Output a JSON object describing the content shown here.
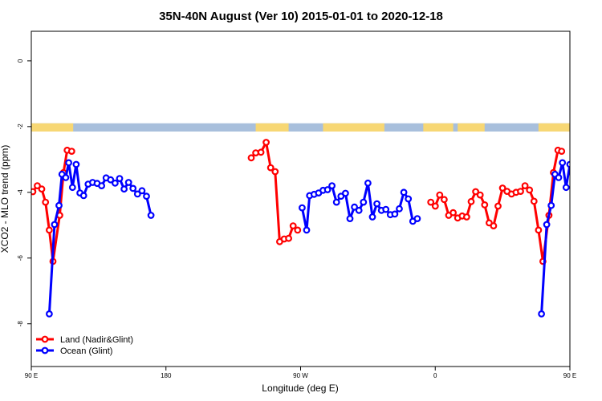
{
  "chart_data": {
    "type": "line",
    "title": "35N-40N August (Ver 10)   2015-01-01 to 2020-12-18",
    "xlabel": "Longitude (deg E)",
    "ylabel": "XCO2 - MLO trend (ppm)",
    "xlim": [
      90,
      450
    ],
    "ylim": [
      -9.3,
      0.9
    ],
    "x_ticks": [
      {
        "value": 90,
        "label": "90 E"
      },
      {
        "value": 180,
        "label": "180"
      },
      {
        "value": 270,
        "label": "90 W"
      },
      {
        "value": 360,
        "label": "0"
      },
      {
        "value": 450,
        "label": "90 E"
      },
      {
        "value": 540,
        "label": "180"
      }
    ],
    "y_ticks": [
      {
        "value": 0,
        "label": "0"
      },
      {
        "value": -2,
        "label": "-2"
      },
      {
        "value": -4,
        "label": "-4"
      },
      {
        "value": -6,
        "label": "-6"
      },
      {
        "value": -8,
        "label": "-8"
      }
    ],
    "grid": false,
    "legend": "bottom-left",
    "land_mask_band": {
      "y_range": [
        -2.15,
        -1.9
      ],
      "land_color": "#f7d774",
      "ocean_color": "#a8bfdc",
      "land_intervals": [
        [
          90,
          118
        ],
        [
          240,
          262
        ],
        [
          285,
          326
        ],
        [
          352,
          372
        ],
        [
          375,
          393
        ],
        [
          429,
          475
        ]
      ]
    },
    "series": [
      {
        "name": "Land (Nadir&Glint)",
        "color": "#ff0000",
        "segments": [
          [
            [
              91,
              -3.98
            ],
            [
              94,
              -3.8
            ],
            [
              97,
              -3.9
            ],
            [
              99.5,
              -4.3
            ],
            [
              102,
              -5.15
            ],
            [
              104.5,
              -6.1
            ],
            [
              109,
              -4.7
            ],
            [
              111.5,
              -3.4
            ],
            [
              114,
              -2.72
            ],
            [
              117,
              -2.75
            ]
          ],
          [
            [
              237,
              -2.95
            ],
            [
              240,
              -2.8
            ],
            [
              243.5,
              -2.78
            ],
            [
              247,
              -2.48
            ],
            [
              250,
              -3.25
            ],
            [
              253,
              -3.37
            ],
            [
              256,
              -5.5
            ],
            [
              259,
              -5.42
            ],
            [
              262,
              -5.4
            ],
            [
              265,
              -5.02
            ],
            [
              268,
              -5.15
            ]
          ],
          [
            [
              357,
              -4.3
            ],
            [
              360,
              -4.42
            ],
            [
              363,
              -4.08
            ],
            [
              366,
              -4.22
            ],
            [
              369,
              -4.7
            ],
            [
              372,
              -4.62
            ],
            [
              375,
              -4.78
            ],
            [
              378,
              -4.72
            ],
            [
              381,
              -4.75
            ],
            [
              384,
              -4.28
            ],
            [
              387,
              -3.98
            ],
            [
              390,
              -4.08
            ],
            [
              393,
              -4.38
            ],
            [
              396,
              -4.93
            ],
            [
              399,
              -5.02
            ],
            [
              402,
              -4.42
            ],
            [
              405,
              -3.87
            ],
            [
              408,
              -3.97
            ],
            [
              411,
              -4.05
            ],
            [
              414,
              -4.0
            ],
            [
              417,
              -3.97
            ],
            [
              420,
              -3.8
            ],
            [
              423,
              -3.93
            ],
            [
              426,
              -4.27
            ],
            [
              429,
              -5.15
            ],
            [
              432,
              -6.1
            ],
            [
              436,
              -4.7
            ],
            [
              439,
              -3.4
            ],
            [
              442,
              -2.72
            ],
            [
              444.5,
              -2.75
            ]
          ]
        ]
      },
      {
        "name": "Ocean (Glint)",
        "color": "#0000ff",
        "segments": [
          [
            [
              102,
              -7.7
            ],
            [
              105.5,
              -4.98
            ],
            [
              108.5,
              -4.4
            ],
            [
              110.5,
              -3.45
            ],
            [
              113,
              -3.55
            ],
            [
              115,
              -3.1
            ],
            [
              117.5,
              -3.85
            ],
            [
              120,
              -3.15
            ],
            [
              122.5,
              -4.02
            ],
            [
              125,
              -4.1
            ],
            [
              128,
              -3.75
            ],
            [
              131,
              -3.7
            ],
            [
              134,
              -3.73
            ],
            [
              137,
              -3.8
            ],
            [
              140,
              -3.56
            ],
            [
              143,
              -3.62
            ],
            [
              146,
              -3.72
            ],
            [
              149,
              -3.58
            ],
            [
              152,
              -3.9
            ],
            [
              155,
              -3.7
            ],
            [
              158,
              -3.88
            ],
            [
              161,
              -4.05
            ],
            [
              164,
              -3.95
            ],
            [
              167,
              -4.12
            ],
            [
              170,
              -4.7
            ]
          ],
          [
            [
              271,
              -4.47
            ],
            [
              274,
              -5.15
            ],
            [
              276,
              -4.1
            ],
            [
              279,
              -4.06
            ],
            [
              282,
              -4.02
            ],
            [
              285,
              -3.94
            ],
            [
              288,
              -3.92
            ],
            [
              291,
              -3.8
            ],
            [
              294,
              -4.3
            ],
            [
              297,
              -4.12
            ],
            [
              300,
              -4.03
            ],
            [
              303,
              -4.8
            ],
            [
              306,
              -4.45
            ],
            [
              309,
              -4.55
            ],
            [
              312,
              -4.3
            ],
            [
              315,
              -3.72
            ],
            [
              318,
              -4.75
            ],
            [
              321,
              -4.35
            ],
            [
              324,
              -4.55
            ],
            [
              327,
              -4.52
            ],
            [
              330,
              -4.68
            ],
            [
              333,
              -4.66
            ],
            [
              336,
              -4.5
            ],
            [
              339,
              -4.0
            ],
            [
              342,
              -4.2
            ],
            [
              345,
              -4.88
            ],
            [
              348,
              -4.8
            ]
          ],
          [
            [
              431,
              -7.7
            ],
            [
              434.5,
              -4.98
            ],
            [
              437.5,
              -4.4
            ],
            [
              440,
              -3.45
            ],
            [
              442.5,
              -3.55
            ],
            [
              445,
              -3.1
            ],
            [
              447.5,
              -3.85
            ],
            [
              450,
              -3.15
            ],
            [
              452.5,
              -4.02
            ],
            [
              455,
              -4.1
            ],
            [
              457.5,
              -3.75
            ],
            [
              459.5,
              -3.7
            ],
            [
              462,
              -3.73
            ]
          ]
        ]
      }
    ]
  }
}
